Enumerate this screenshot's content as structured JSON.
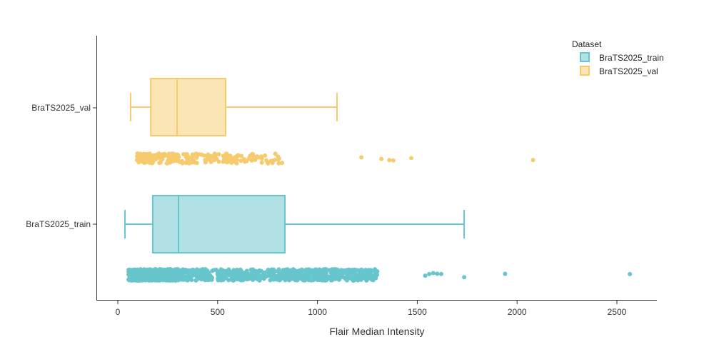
{
  "chart_data": {
    "type": "box",
    "title": "",
    "xlabel": "Flair Median Intensity",
    "ylabel": "",
    "xlim": [
      -110,
      2690
    ],
    "x_ticks": [
      0,
      500,
      1000,
      1500,
      2000,
      2500
    ],
    "x_tick_labels": [
      "0",
      "500",
      "1000",
      "1500",
      "2000",
      "2500"
    ],
    "categories": [
      "BraTS2025_val",
      "BraTS2025_train"
    ],
    "grid": false,
    "legend": {
      "title": "Dataset",
      "position": "top-right",
      "entries": [
        "BraTS2025_train",
        "BraTS2025_val"
      ]
    },
    "series": [
      {
        "name": "BraTS2025_train",
        "color": "#67C5CC",
        "fill": "#B2E1E5",
        "whisker_low": 36,
        "q1": 175,
        "median": 304,
        "q3": 837,
        "whisker_high": 1735,
        "points_note": "dense jittered points ~1250, concentrated 80-1300",
        "outliers": [
          1940,
          2565,
          1735,
          1620,
          1600,
          1580,
          1560,
          1540
        ]
      },
      {
        "name": "BraTS2025_val",
        "color": "#F5CB6E",
        "fill": "#FBE5B5",
        "whisker_low": 64,
        "q1": 165,
        "median": 297,
        "q3": 540,
        "whisker_high": 1098,
        "points_note": "jittered points ~250, concentrated 70-1100",
        "outliers": [
          1220,
          1320,
          1360,
          1380,
          1470,
          2080
        ]
      }
    ]
  }
}
